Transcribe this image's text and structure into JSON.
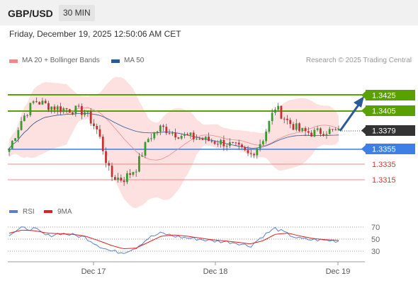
{
  "header": {
    "pair": "GBP/USD",
    "timeframe": "30 MIN"
  },
  "timestamp": "Friday, December 19, 2025 12:50:06 AM CET",
  "legend": {
    "ma20_label": "MA 20 + Bollinger Bands",
    "ma50_label": "MA 50",
    "ma20_color": "#f08a8a",
    "ma50_color": "#2a5a9a"
  },
  "copyright": "Research © 2025 Trading Central",
  "levels": {
    "r1": "1.3425",
    "r2": "1.3405",
    "current": "1.3379",
    "s1": "1.3355",
    "s2": "1.3335",
    "s3": "1.3315"
  },
  "colors": {
    "resistance": "#5aa000",
    "support": "#3d7fe6",
    "support_red": "#e03030",
    "current": "#333333",
    "bollinger_fill": "#fde0e0",
    "rsi": "#5a7fd0",
    "rsi_ma": "#e02020"
  },
  "rsi_legend": {
    "rsi_label": "RSI",
    "ma_label": "9MA"
  },
  "rsi_levels": [
    "70",
    "50",
    "30"
  ],
  "x_axis": [
    "Dec 17",
    "Dec 18",
    "Dec 19"
  ],
  "chart_data": {
    "type": "candlestick",
    "instrument": "GBP/USD",
    "interval": "30 MIN",
    "ylim": [
      1.3305,
      1.3445
    ],
    "levels": [
      1.3425,
      1.3405,
      1.3379,
      1.3355,
      1.3335,
      1.3315
    ],
    "price_path": [
      1.3359,
      1.3395,
      1.3418,
      1.3412,
      1.3408,
      1.3407,
      1.3404,
      1.338,
      1.3325,
      1.3321,
      1.3335,
      1.3372,
      1.3385,
      1.3378,
      1.3374,
      1.3371,
      1.3368,
      1.3366,
      1.336,
      1.335,
      1.337,
      1.341,
      1.3392,
      1.338,
      1.3378,
      1.3381,
      1.3379
    ],
    "rsi": [
      58,
      68,
      67,
      55,
      60,
      57,
      53,
      40,
      30,
      28,
      36,
      52,
      60,
      55,
      52,
      50,
      47,
      46,
      44,
      38,
      55,
      68,
      58,
      50,
      49,
      48,
      47
    ],
    "rsi_ma": [
      60,
      65,
      64,
      60,
      59,
      58,
      55,
      48,
      40,
      34,
      35,
      45,
      55,
      57,
      55,
      52,
      49,
      47,
      45,
      42,
      47,
      58,
      60,
      55,
      51,
      49,
      48
    ],
    "rsi_levels": [
      70,
      50,
      30
    ],
    "x_ticks": [
      "Dec 17",
      "Dec 18",
      "Dec 19"
    ]
  }
}
